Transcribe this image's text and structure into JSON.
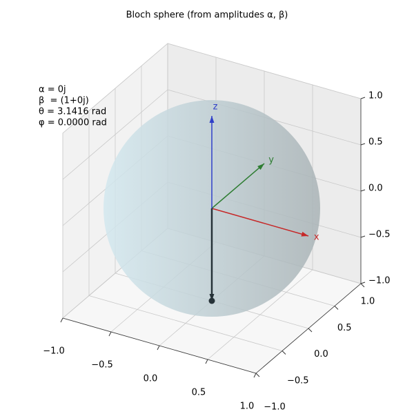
{
  "chart_data": {
    "type": "bloch3d",
    "title": "Bloch sphere (from amplitudes α, β)",
    "annotations": [
      "α = 0j",
      "β  = (1+0j)",
      "θ = 3.1416 rad",
      "φ = 0.0000 rad"
    ],
    "xlim": [
      -1,
      1
    ],
    "ylim": [
      -1,
      1
    ],
    "zlim": [
      -1,
      1
    ],
    "xticks": [
      {
        "value": -1,
        "label": "−1.0"
      },
      {
        "value": -0.5,
        "label": "−0.5"
      },
      {
        "value": 0,
        "label": "0.0"
      },
      {
        "value": 0.5,
        "label": "0.5"
      },
      {
        "value": 1,
        "label": "1.0"
      }
    ],
    "yticks": [
      {
        "value": -1,
        "label": "−1.0"
      },
      {
        "value": -0.5,
        "label": "−0.5"
      },
      {
        "value": 0,
        "label": "0.0"
      },
      {
        "value": 0.5,
        "label": "0.5"
      },
      {
        "value": 1,
        "label": "1.0"
      }
    ],
    "zticks": [
      {
        "value": -1,
        "label": "−1.0"
      },
      {
        "value": -0.5,
        "label": "−0.5"
      },
      {
        "value": 0,
        "label": "0.0"
      },
      {
        "value": 0.5,
        "label": "0.5"
      },
      {
        "value": 1,
        "label": "1.0"
      }
    ],
    "series": [
      {
        "name": "x",
        "color": "#c62828",
        "values": [
          1,
          0,
          0
        ]
      },
      {
        "name": "y",
        "color": "#2e7d32",
        "values": [
          0,
          1,
          0
        ]
      },
      {
        "name": "z",
        "color": "#2f3fc8",
        "values": [
          0,
          0,
          1
        ]
      }
    ],
    "state": [
      0,
      0,
      -1
    ],
    "state_color": "#263238",
    "grid": true
  }
}
